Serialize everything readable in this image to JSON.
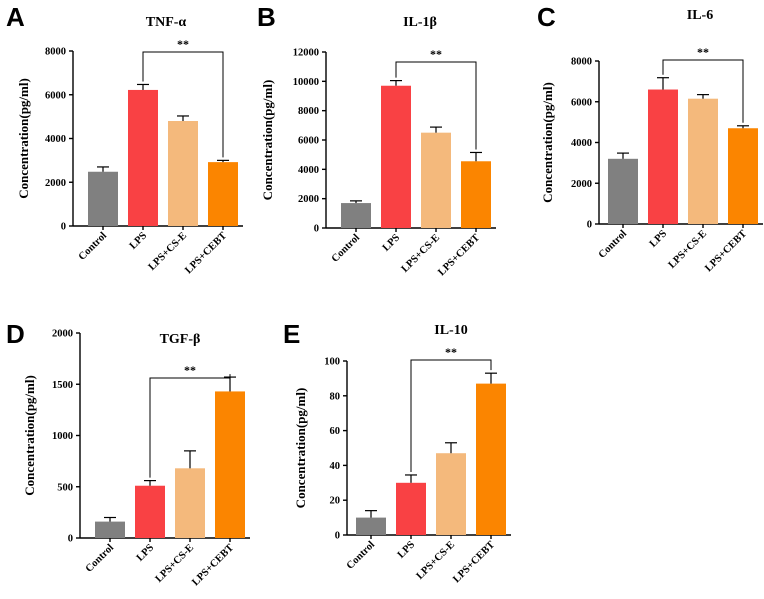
{
  "chart_data": [
    {
      "type": "bar",
      "panel": "A",
      "title": "TNF-α",
      "ylabel": "Concentration(pg/ml)",
      "categories": [
        "Control",
        "LPS",
        "LPS+CS-E",
        "LPS+CEBT"
      ],
      "values": [
        2480,
        6220,
        4800,
        2920
      ],
      "errors": [
        220,
        250,
        230,
        80
      ],
      "ylim": [
        0,
        8000
      ],
      "yticks": [
        0,
        2000,
        4000,
        6000,
        8000
      ],
      "colors": [
        "#808080",
        "#f94144",
        "#f4b97c",
        "#fb8500"
      ],
      "significance": {
        "from": 1,
        "to": 3,
        "label": "**"
      }
    },
    {
      "type": "bar",
      "panel": "B",
      "title": "IL-1β",
      "ylabel": "Concentration(pg/ml)",
      "categories": [
        "Control",
        "LPS",
        "LPS+CS-E",
        "LPS+CEBT"
      ],
      "values": [
        1700,
        9700,
        6500,
        4550
      ],
      "errors": [
        150,
        350,
        380,
        600
      ],
      "ylim": [
        0,
        12000
      ],
      "yticks": [
        0,
        2000,
        4000,
        6000,
        8000,
        10000,
        12000
      ],
      "colors": [
        "#808080",
        "#f94144",
        "#f4b97c",
        "#fb8500"
      ],
      "significance": {
        "from": 1,
        "to": 3,
        "label": "**"
      }
    },
    {
      "type": "bar",
      "panel": "C",
      "title": "IL-6",
      "ylabel": "Concentration(pg/ml)",
      "categories": [
        "Control",
        "LPS",
        "LPS+CS-E",
        "LPS+CEBT"
      ],
      "values": [
        3200,
        6600,
        6150,
        4700
      ],
      "errors": [
        280,
        580,
        200,
        120
      ],
      "ylim": [
        0,
        8000
      ],
      "yticks": [
        0,
        2000,
        4000,
        6000,
        8000
      ],
      "colors": [
        "#808080",
        "#f94144",
        "#f4b97c",
        "#fb8500"
      ],
      "significance": {
        "from": 1,
        "to": 3,
        "label": "**"
      }
    },
    {
      "type": "bar",
      "panel": "D",
      "title": "TGF-β",
      "ylabel": "Concentration(pg/ml)",
      "categories": [
        "Control",
        "LPS",
        "LPS+CS-E",
        "LPS+CEBT"
      ],
      "values": [
        160,
        510,
        680,
        1430
      ],
      "errors": [
        40,
        50,
        170,
        140
      ],
      "ylim": [
        0,
        2000
      ],
      "yticks": [
        0,
        500,
        1000,
        1500,
        2000
      ],
      "colors": [
        "#808080",
        "#f94144",
        "#f4b97c",
        "#fb8500"
      ],
      "significance": {
        "from": 1,
        "to": 3,
        "label": "**"
      }
    },
    {
      "type": "bar",
      "panel": "E",
      "title": "IL-10",
      "ylabel": "Concentration(pg/ml)",
      "categories": [
        "Control",
        "LPS",
        "LPS+CS-E",
        "LPS+CEBT"
      ],
      "values": [
        10,
        30,
        47,
        87
      ],
      "errors": [
        4,
        4.5,
        6,
        6
      ],
      "ylim": [
        0,
        100
      ],
      "yticks": [
        0,
        20,
        40,
        60,
        80,
        100
      ],
      "colors": [
        "#808080",
        "#f94144",
        "#f4b97c",
        "#fb8500"
      ],
      "significance": {
        "from": 1,
        "to": 3,
        "label": "**"
      }
    }
  ]
}
